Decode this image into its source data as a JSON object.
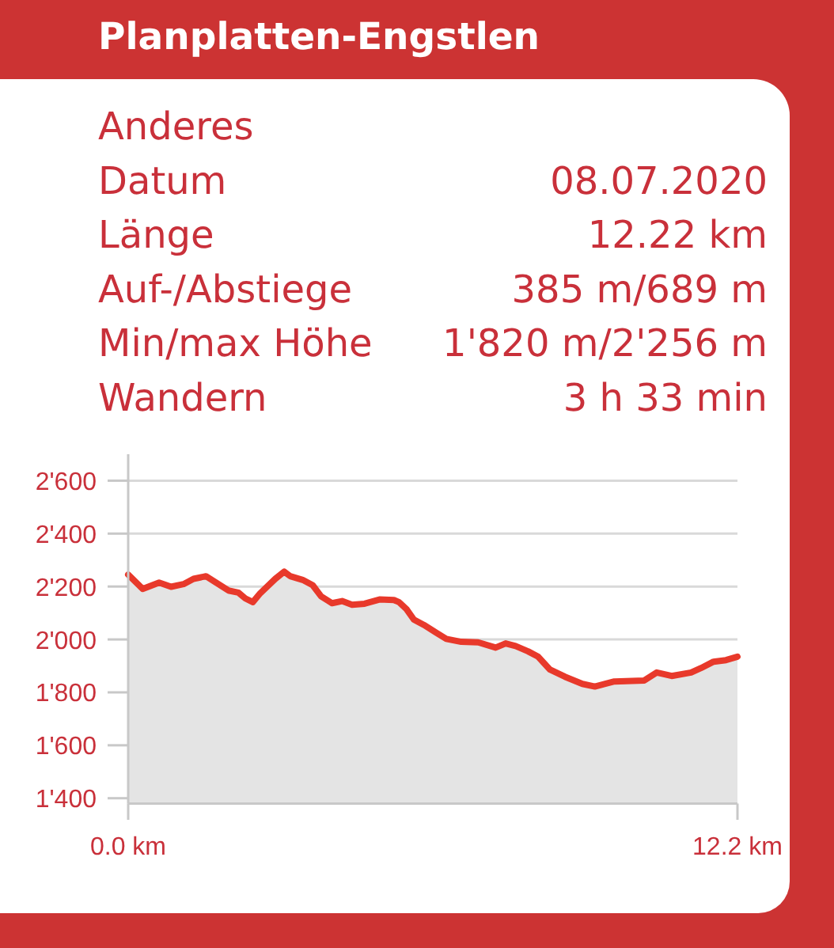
{
  "chart_data": [
    {
      "type": "other",
      "title": "Planplatten-Engstlen",
      "annotations": [
        "Anderes",
        "Datum",
        "08.07.2020",
        "Länge",
        "12.22 km",
        "Auf-/Abstiege",
        "385 m/689 m",
        "Min/max Höhe",
        "1'820 m/2'256 m",
        "Wandern",
        "3 h 33 min"
      ]
    },
    {
      "type": "area",
      "x": [
        0,
        0.29,
        0.62,
        0.86,
        1.11,
        1.31,
        1.56,
        1.76,
        2.01,
        2.21,
        2.35,
        2.5,
        2.65,
        2.95,
        3.13,
        3.25,
        3.5,
        3.7,
        3.87,
        4.09,
        4.29,
        4.49,
        4.74,
        5.04,
        5.33,
        5.43,
        5.58,
        5.73,
        5.93,
        6.18,
        6.38,
        6.68,
        7.02,
        7.37,
        7.57,
        7.77,
        8.02,
        8.22,
        8.46,
        8.76,
        9.11,
        9.36,
        9.75,
        10.35,
        10.6,
        10.9,
        11.29,
        11.49,
        11.74,
        11.99,
        12.22
      ],
      "values": [
        2245,
        2191,
        2215,
        2199,
        2209,
        2229,
        2239,
        2215,
        2185,
        2177,
        2155,
        2141,
        2175,
        2229,
        2256,
        2239,
        2225,
        2205,
        2163,
        2137,
        2145,
        2131,
        2135,
        2151,
        2149,
        2141,
        2115,
        2075,
        2055,
        2025,
        2002,
        1991,
        1989,
        1969,
        1985,
        1975,
        1955,
        1935,
        1886,
        1859,
        1832,
        1822,
        1841,
        1845,
        1875,
        1862,
        1875,
        1892,
        1916,
        1922,
        1935
      ],
      "color": "#e8392b",
      "xlim": [
        0,
        12.22
      ],
      "xticks": [
        {
          "value": 0,
          "label": "0.0 km"
        },
        {
          "value": 12.22,
          "label": "12.2 km"
        }
      ],
      "ylim": [
        1380,
        2700
      ],
      "yticks": [
        {
          "value": 1400,
          "label": "1'400"
        },
        {
          "value": 1600,
          "label": "1'600"
        },
        {
          "value": 1800,
          "label": "1'800"
        },
        {
          "value": 2000,
          "label": "2'000"
        },
        {
          "value": 2200,
          "label": "2'200"
        },
        {
          "value": 2400,
          "label": "2'400"
        },
        {
          "value": 2600,
          "label": "2'600"
        }
      ],
      "grid": "y"
    }
  ]
}
